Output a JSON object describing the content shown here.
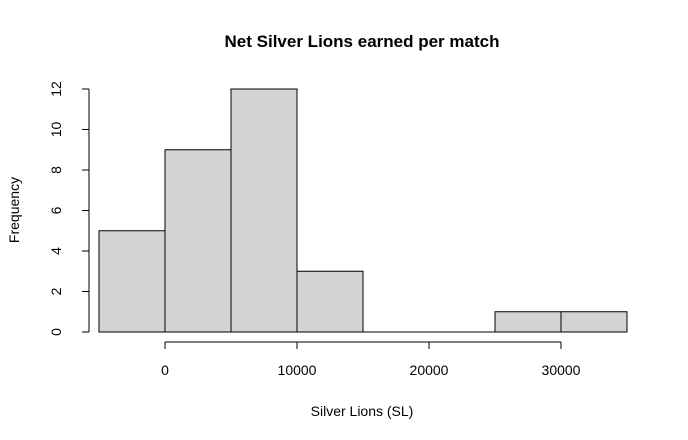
{
  "chart_data": {
    "type": "bar",
    "title": "Net Silver Lions earned per match",
    "xlabel": "Silver Lions (SL)",
    "ylabel": "Frequency",
    "bins": [
      {
        "from": -5000,
        "to": 0,
        "count": 5
      },
      {
        "from": 0,
        "to": 5000,
        "count": 9
      },
      {
        "from": 5000,
        "to": 10000,
        "count": 12
      },
      {
        "from": 10000,
        "to": 15000,
        "count": 3
      },
      {
        "from": 15000,
        "to": 20000,
        "count": 0
      },
      {
        "from": 20000,
        "to": 25000,
        "count": 0
      },
      {
        "from": 25000,
        "to": 30000,
        "count": 1
      },
      {
        "from": 30000,
        "to": 35000,
        "count": 1
      }
    ],
    "xlim": [
      -5000,
      35000
    ],
    "ylim": [
      0,
      12
    ],
    "x_ticks": [
      0,
      10000,
      20000,
      30000
    ],
    "x_tick_labels": [
      "0",
      "10000",
      "20000",
      "30000"
    ],
    "y_ticks": [
      0,
      2,
      4,
      6,
      8,
      10,
      12
    ],
    "y_tick_labels": [
      "0",
      "2",
      "4",
      "6",
      "8",
      "10",
      "12"
    ],
    "grid": false,
    "colors": {
      "bar_fill": "#d3d3d3",
      "bar_stroke": "#000000"
    }
  }
}
